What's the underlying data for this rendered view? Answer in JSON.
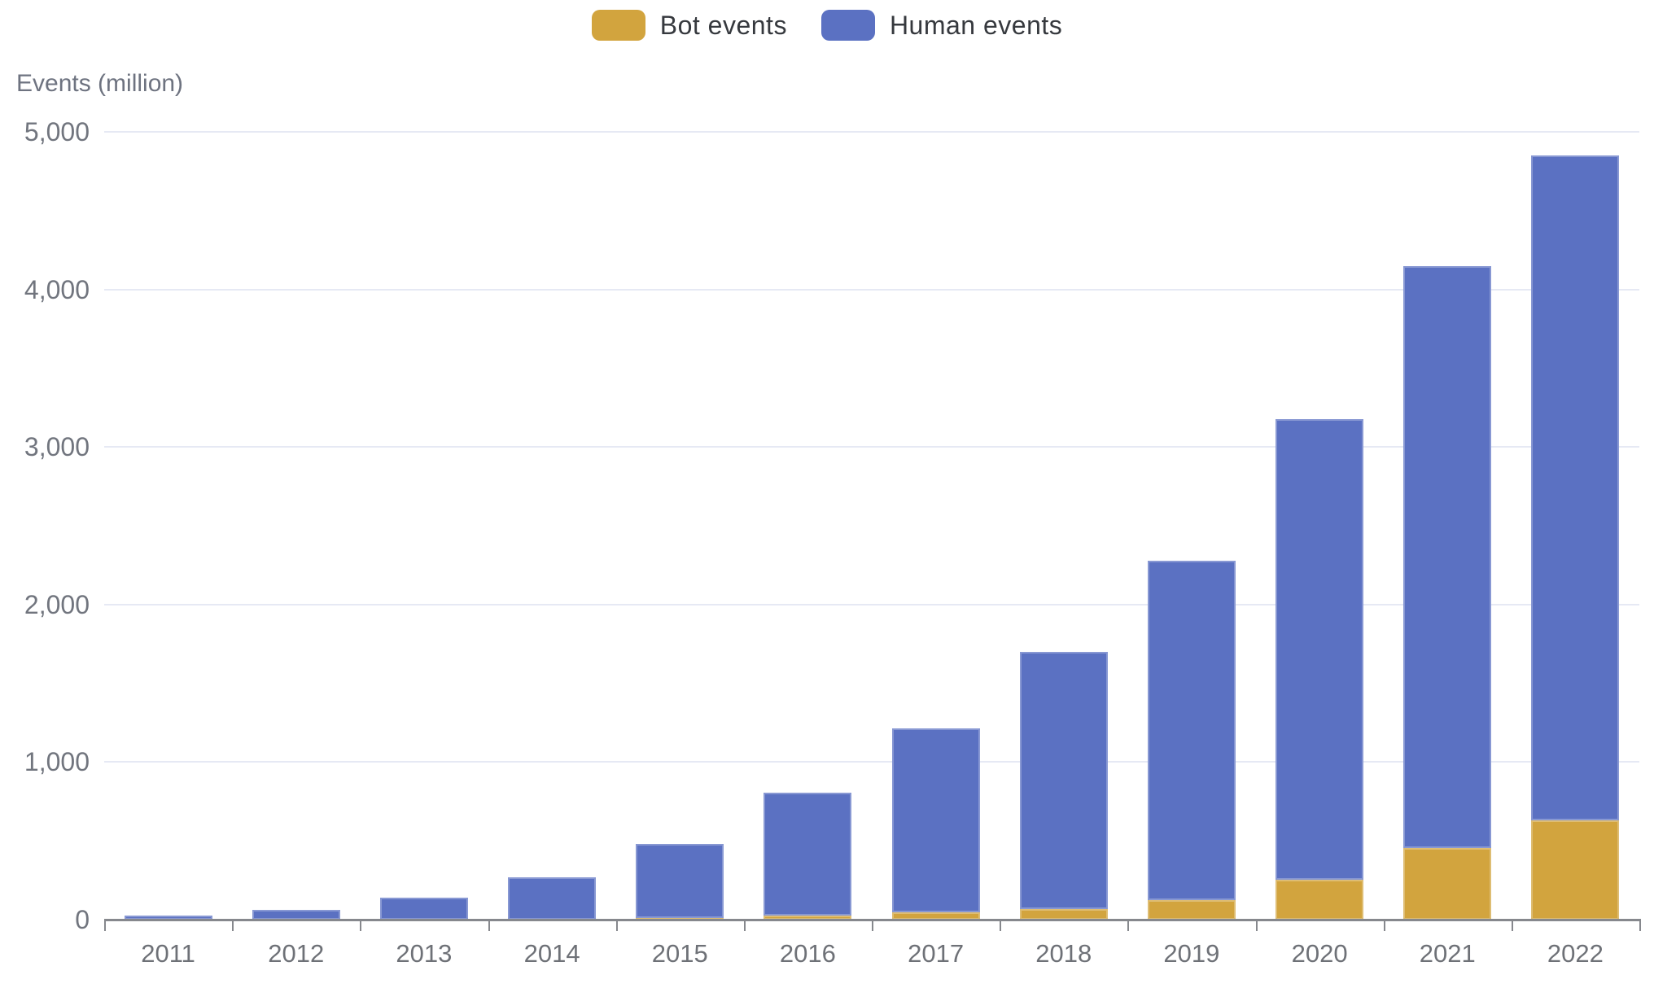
{
  "legend": {
    "items": [
      {
        "label": "Bot events",
        "color": "#d2a43e"
      },
      {
        "label": "Human events",
        "color": "#5b71c2"
      }
    ]
  },
  "axis_title": "Events (million)",
  "chart_data": {
    "type": "bar",
    "stacked": true,
    "title": "",
    "xlabel": "",
    "ylabel": "Events (million)",
    "categories": [
      "2011",
      "2012",
      "2013",
      "2014",
      "2015",
      "2016",
      "2017",
      "2018",
      "2019",
      "2020",
      "2021",
      "2022"
    ],
    "series": [
      {
        "name": "Bot events",
        "color": "#d2a43e",
        "values": [
          0,
          0,
          0,
          0,
          10,
          25,
          45,
          65,
          125,
          255,
          455,
          630
        ]
      },
      {
        "name": "Human events",
        "color": "#5b71c2",
        "values": [
          25,
          60,
          140,
          270,
          470,
          780,
          1170,
          1635,
          2155,
          2920,
          3695,
          4220
        ]
      }
    ],
    "totals": [
      25,
      60,
      140,
      270,
      480,
      805,
      1215,
      1700,
      2280,
      3175,
      4150,
      4850
    ],
    "ylim": [
      0,
      5000
    ],
    "yticks": [
      0,
      1000,
      2000,
      3000,
      4000,
      5000
    ],
    "ytick_labels": [
      "0",
      "1,000",
      "2,000",
      "3,000",
      "4,000",
      "5,000"
    ],
    "grid": true,
    "legend_position": "top-center",
    "colors": {
      "gridline": "#e6e9f4",
      "axis_line": "#86888d",
      "tick_text": "#71757e",
      "category_text": "#6e7177",
      "legend_text": "#36393e",
      "axis_title_text": "#6e7380"
    }
  }
}
